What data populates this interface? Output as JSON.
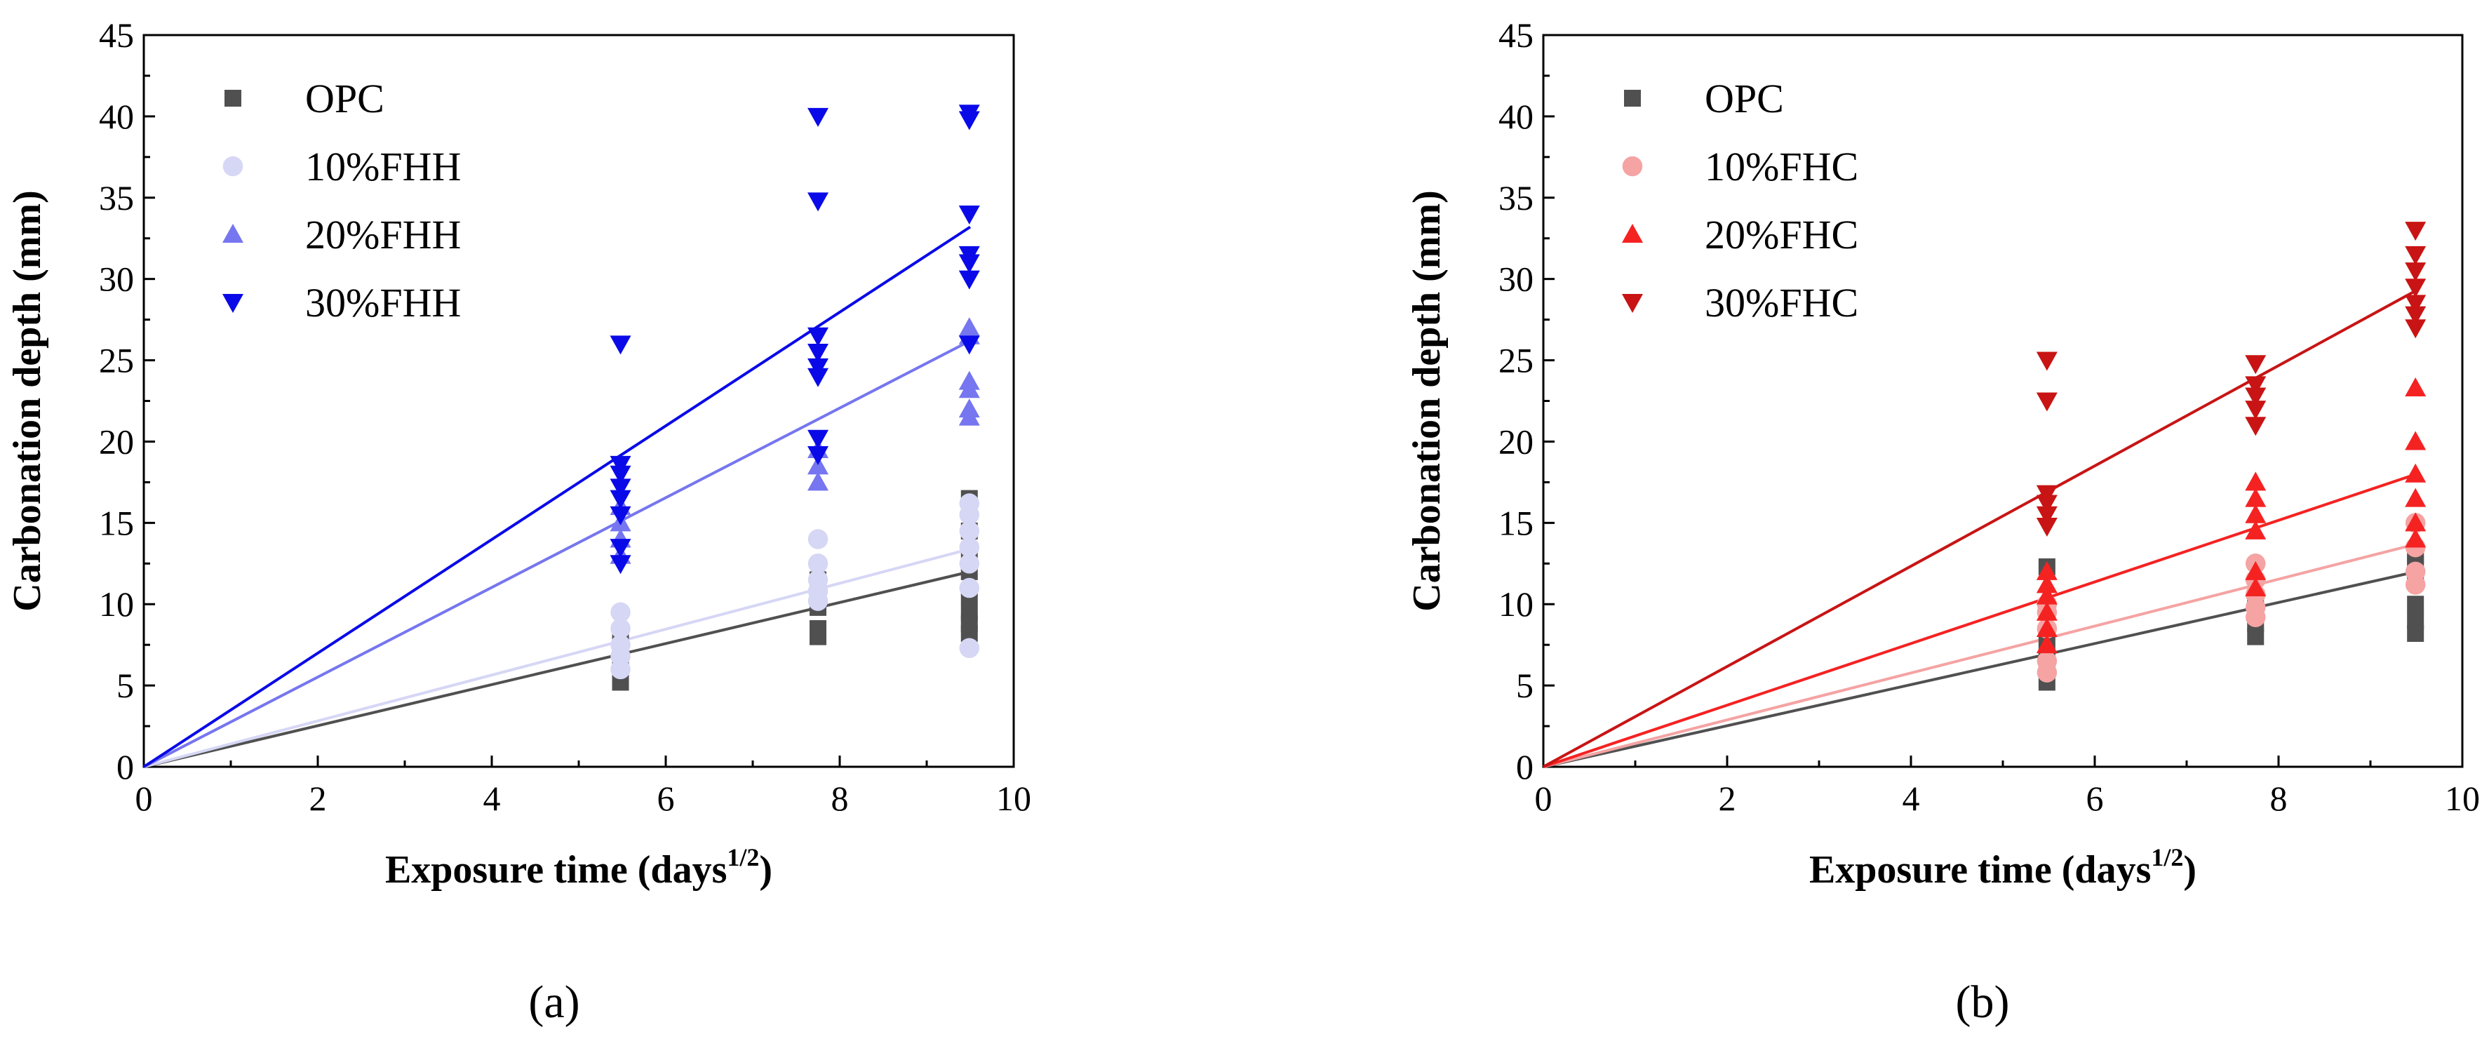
{
  "chart_data": [
    {
      "panel": "a",
      "caption": "(a)",
      "type": "scatter",
      "xlabel_main": "Exposure time (days",
      "xlabel_sup": "1/2",
      "xlabel_end": ")",
      "ylabel": "Carbonation depth (mm)",
      "xlim": [
        0,
        10
      ],
      "ylim": [
        0,
        45
      ],
      "xticks": [
        "0",
        "2",
        "4",
        "6",
        "8",
        "10"
      ],
      "yticks": [
        "0",
        "5",
        "10",
        "15",
        "20",
        "25",
        "30",
        "35",
        "40",
        "45"
      ],
      "legend_position": "top-left",
      "series": [
        {
          "name": "OPC",
          "marker": "square",
          "color": "#505050",
          "line_end": [
            9.5,
            12.0
          ],
          "points": [
            [
              5.48,
              5.2
            ],
            [
              5.48,
              6.0
            ],
            [
              5.48,
              6.5
            ],
            [
              5.48,
              7.2
            ],
            [
              5.48,
              8.0
            ],
            [
              7.75,
              8.0
            ],
            [
              7.75,
              8.5
            ],
            [
              7.75,
              9.8
            ],
            [
              7.75,
              10.5
            ],
            [
              7.75,
              11.5
            ],
            [
              9.49,
              8.2
            ],
            [
              9.49,
              8.8
            ],
            [
              9.49,
              9.5
            ],
            [
              9.49,
              10.5
            ],
            [
              9.49,
              12.0
            ],
            [
              9.49,
              13.0
            ],
            [
              9.49,
              14.5
            ],
            [
              9.49,
              16.5
            ]
          ]
        },
        {
          "name": "10%FHH",
          "marker": "circle",
          "color": "#d6d6f5",
          "line_end": [
            9.5,
            13.4
          ],
          "points": [
            [
              5.48,
              6.0
            ],
            [
              5.48,
              6.8
            ],
            [
              5.48,
              7.5
            ],
            [
              5.48,
              8.5
            ],
            [
              5.48,
              9.5
            ],
            [
              7.75,
              10.2
            ],
            [
              7.75,
              10.8
            ],
            [
              7.75,
              11.5
            ],
            [
              7.75,
              12.5
            ],
            [
              7.75,
              14.0
            ],
            [
              9.49,
              7.3
            ],
            [
              9.49,
              11.0
            ],
            [
              9.49,
              12.5
            ],
            [
              9.49,
              13.5
            ],
            [
              9.49,
              14.5
            ],
            [
              9.49,
              15.5
            ],
            [
              9.49,
              16.2
            ]
          ]
        },
        {
          "name": "20%FHH",
          "marker": "triangle-up",
          "color": "#7676f0",
          "line_end": [
            9.5,
            26.2
          ],
          "points": [
            [
              5.48,
              13.0
            ],
            [
              5.48,
              14.0
            ],
            [
              5.48,
              15.0
            ],
            [
              5.48,
              16.0
            ],
            [
              7.75,
              17.5
            ],
            [
              7.75,
              18.5
            ],
            [
              7.75,
              19.5
            ],
            [
              9.49,
              21.5
            ],
            [
              9.49,
              22.0
            ],
            [
              9.49,
              23.2
            ],
            [
              9.49,
              23.7
            ],
            [
              9.49,
              26.5
            ],
            [
              9.49,
              27.0
            ]
          ]
        },
        {
          "name": "30%FHH",
          "marker": "triangle-down",
          "color": "#0a0ae8",
          "line_end": [
            9.5,
            33.2
          ],
          "points": [
            [
              5.48,
              12.5
            ],
            [
              5.48,
              13.5
            ],
            [
              5.48,
              15.5
            ],
            [
              5.48,
              16.5
            ],
            [
              5.48,
              17.2
            ],
            [
              5.48,
              18.0
            ],
            [
              5.48,
              18.6
            ],
            [
              5.48,
              26.0
            ],
            [
              7.75,
              19.2
            ],
            [
              7.75,
              20.2
            ],
            [
              7.75,
              24.0
            ],
            [
              7.75,
              24.6
            ],
            [
              7.75,
              25.5
            ],
            [
              7.75,
              26.5
            ],
            [
              7.75,
              34.8
            ],
            [
              7.75,
              40.0
            ],
            [
              9.49,
              26.0
            ],
            [
              9.49,
              30.0
            ],
            [
              9.49,
              31.0
            ],
            [
              9.49,
              31.5
            ],
            [
              9.49,
              34.0
            ],
            [
              9.49,
              39.8
            ],
            [
              9.49,
              40.2
            ]
          ]
        }
      ]
    },
    {
      "panel": "b",
      "caption": "(b)",
      "type": "scatter",
      "xlabel_main": "Exposure time (days",
      "xlabel_sup": "1/2",
      "xlabel_end": ")",
      "ylabel": "Carbonation depth (mm)",
      "xlim": [
        0,
        10
      ],
      "ylim": [
        0,
        45
      ],
      "xticks": [
        "0",
        "2",
        "4",
        "6",
        "8",
        "10"
      ],
      "yticks": [
        "0",
        "5",
        "10",
        "15",
        "20",
        "25",
        "30",
        "35",
        "40",
        "45"
      ],
      "legend_position": "top-left",
      "series": [
        {
          "name": "OPC",
          "marker": "square",
          "color": "#505050",
          "line_end": [
            9.5,
            12.0
          ],
          "points": [
            [
              5.48,
              5.2
            ],
            [
              5.48,
              6.0
            ],
            [
              5.48,
              7.0
            ],
            [
              5.48,
              8.0
            ],
            [
              5.48,
              12.3
            ],
            [
              7.75,
              8.0
            ],
            [
              7.75,
              8.8
            ],
            [
              7.75,
              9.5
            ],
            [
              7.75,
              10.0
            ],
            [
              9.49,
              8.2
            ],
            [
              9.49,
              9.0
            ],
            [
              9.49,
              10.0
            ],
            [
              9.49,
              11.5
            ],
            [
              9.49,
              12.5
            ],
            [
              9.49,
              13.0
            ]
          ]
        },
        {
          "name": "10%FHC",
          "marker": "circle",
          "color": "#f5a3a3",
          "line_end": [
            9.5,
            13.7
          ],
          "points": [
            [
              5.48,
              5.8
            ],
            [
              5.48,
              6.5
            ],
            [
              5.48,
              8.5
            ],
            [
              5.48,
              9.5
            ],
            [
              5.48,
              10.0
            ],
            [
              7.75,
              9.2
            ],
            [
              7.75,
              9.8
            ],
            [
              7.75,
              10.6
            ],
            [
              7.75,
              11.5
            ],
            [
              7.75,
              12.5
            ],
            [
              9.49,
              11.2
            ],
            [
              9.49,
              12.0
            ],
            [
              9.49,
              13.5
            ],
            [
              9.49,
              15.0
            ]
          ]
        },
        {
          "name": "20%FHC",
          "marker": "triangle-up",
          "color": "#f52222",
          "line_end": [
            9.5,
            18.0
          ],
          "points": [
            [
              5.48,
              7.5
            ],
            [
              5.48,
              8.5
            ],
            [
              5.48,
              9.5
            ],
            [
              5.48,
              10.5
            ],
            [
              5.48,
              11.2
            ],
            [
              5.48,
              12.0
            ],
            [
              7.75,
              11.0
            ],
            [
              7.75,
              12.0
            ],
            [
              7.75,
              14.5
            ],
            [
              7.75,
              15.5
            ],
            [
              7.75,
              16.5
            ],
            [
              7.75,
              17.5
            ],
            [
              9.49,
              14.0
            ],
            [
              9.49,
              15.0
            ],
            [
              9.49,
              16.5
            ],
            [
              9.49,
              18.0
            ],
            [
              9.49,
              20.0
            ],
            [
              9.49,
              23.3
            ]
          ]
        },
        {
          "name": "30%FHC",
          "marker": "triangle-down",
          "color": "#c81414",
          "line_end": [
            9.5,
            29.3
          ],
          "points": [
            [
              5.48,
              14.8
            ],
            [
              5.48,
              15.5
            ],
            [
              5.48,
              16.2
            ],
            [
              5.48,
              16.8
            ],
            [
              5.48,
              22.5
            ],
            [
              5.48,
              25.0
            ],
            [
              7.75,
              21.0
            ],
            [
              7.75,
              22.0
            ],
            [
              7.75,
              22.8
            ],
            [
              7.75,
              23.5
            ],
            [
              7.75,
              24.8
            ],
            [
              9.49,
              27.0
            ],
            [
              9.49,
              27.8
            ],
            [
              9.49,
              28.5
            ],
            [
              9.49,
              29.5
            ],
            [
              9.49,
              30.5
            ],
            [
              9.49,
              31.5
            ],
            [
              9.49,
              33.0
            ]
          ]
        }
      ]
    }
  ]
}
